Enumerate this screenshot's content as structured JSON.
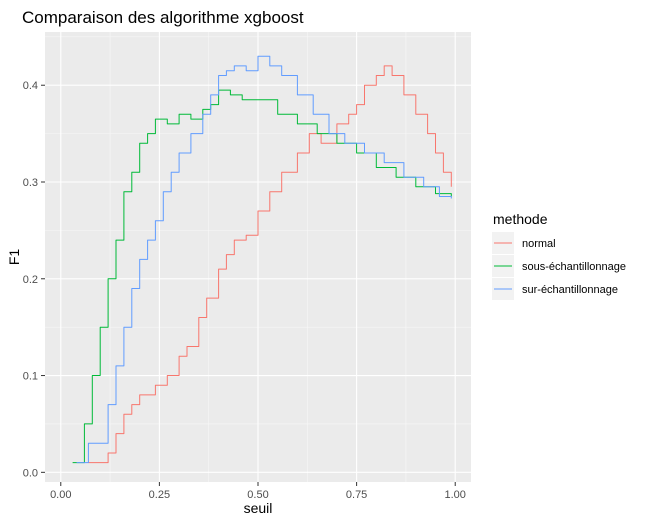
{
  "chart_data": {
    "type": "line",
    "title": "Comparaison des algorithme xgboost",
    "xlabel": "seuil",
    "ylabel": "F1",
    "xlim": [
      -0.04,
      1.04
    ],
    "ylim": [
      -0.01,
      0.455
    ],
    "xticks": [
      0.0,
      0.25,
      0.5,
      0.75,
      1.0
    ],
    "xtick_labels": [
      "0.00",
      "0.25",
      "0.50",
      "0.75",
      "1.00"
    ],
    "yticks": [
      0.0,
      0.1,
      0.2,
      0.3,
      0.4
    ],
    "ytick_labels": [
      "0.0",
      "0.1",
      "0.2",
      "0.3",
      "0.4"
    ],
    "grid": true,
    "legend": {
      "title": "methode",
      "position": "right"
    },
    "series": [
      {
        "name": "normal",
        "color": "#F8766D",
        "points": [
          [
            0.07,
            0.01
          ],
          [
            0.1,
            0.01
          ],
          [
            0.12,
            0.02
          ],
          [
            0.14,
            0.04
          ],
          [
            0.16,
            0.06
          ],
          [
            0.18,
            0.07
          ],
          [
            0.2,
            0.08
          ],
          [
            0.24,
            0.09
          ],
          [
            0.27,
            0.1
          ],
          [
            0.3,
            0.12
          ],
          [
            0.32,
            0.13
          ],
          [
            0.35,
            0.16
          ],
          [
            0.37,
            0.18
          ],
          [
            0.4,
            0.21
          ],
          [
            0.42,
            0.225
          ],
          [
            0.44,
            0.24
          ],
          [
            0.47,
            0.245
          ],
          [
            0.5,
            0.27
          ],
          [
            0.53,
            0.29
          ],
          [
            0.56,
            0.31
          ],
          [
            0.6,
            0.33
          ],
          [
            0.63,
            0.35
          ],
          [
            0.66,
            0.34
          ],
          [
            0.7,
            0.36
          ],
          [
            0.73,
            0.37
          ],
          [
            0.75,
            0.38
          ],
          [
            0.77,
            0.4
          ],
          [
            0.8,
            0.41
          ],
          [
            0.82,
            0.42
          ],
          [
            0.84,
            0.41
          ],
          [
            0.87,
            0.39
          ],
          [
            0.9,
            0.37
          ],
          [
            0.93,
            0.35
          ],
          [
            0.95,
            0.33
          ],
          [
            0.97,
            0.31
          ],
          [
            0.99,
            0.295
          ]
        ]
      },
      {
        "name": "sous-échantillonnage",
        "color": "#00BA38",
        "points": [
          [
            0.03,
            0.01
          ],
          [
            0.05,
            0.01
          ],
          [
            0.06,
            0.05
          ],
          [
            0.08,
            0.1
          ],
          [
            0.1,
            0.15
          ],
          [
            0.12,
            0.2
          ],
          [
            0.14,
            0.24
          ],
          [
            0.16,
            0.29
          ],
          [
            0.18,
            0.31
          ],
          [
            0.2,
            0.34
          ],
          [
            0.22,
            0.35
          ],
          [
            0.24,
            0.365
          ],
          [
            0.27,
            0.36
          ],
          [
            0.3,
            0.37
          ],
          [
            0.33,
            0.365
          ],
          [
            0.36,
            0.375
          ],
          [
            0.38,
            0.38
          ],
          [
            0.4,
            0.395
          ],
          [
            0.43,
            0.39
          ],
          [
            0.46,
            0.385
          ],
          [
            0.5,
            0.385
          ],
          [
            0.55,
            0.37
          ],
          [
            0.6,
            0.36
          ],
          [
            0.65,
            0.35
          ],
          [
            0.7,
            0.34
          ],
          [
            0.75,
            0.33
          ],
          [
            0.8,
            0.315
          ],
          [
            0.85,
            0.305
          ],
          [
            0.9,
            0.295
          ],
          [
            0.95,
            0.288
          ],
          [
            0.99,
            0.285
          ]
        ]
      },
      {
        "name": "sur-échantillonnage",
        "color": "#619CFF",
        "points": [
          [
            0.04,
            0.01
          ],
          [
            0.06,
            0.01
          ],
          [
            0.07,
            0.03
          ],
          [
            0.1,
            0.03
          ],
          [
            0.12,
            0.07
          ],
          [
            0.14,
            0.11
          ],
          [
            0.16,
            0.15
          ],
          [
            0.18,
            0.19
          ],
          [
            0.2,
            0.22
          ],
          [
            0.22,
            0.24
          ],
          [
            0.24,
            0.26
          ],
          [
            0.26,
            0.29
          ],
          [
            0.28,
            0.31
          ],
          [
            0.3,
            0.33
          ],
          [
            0.33,
            0.35
          ],
          [
            0.36,
            0.37
          ],
          [
            0.38,
            0.39
          ],
          [
            0.4,
            0.41
          ],
          [
            0.42,
            0.415
          ],
          [
            0.44,
            0.42
          ],
          [
            0.47,
            0.415
          ],
          [
            0.5,
            0.43
          ],
          [
            0.53,
            0.42
          ],
          [
            0.56,
            0.41
          ],
          [
            0.6,
            0.39
          ],
          [
            0.64,
            0.37
          ],
          [
            0.68,
            0.35
          ],
          [
            0.72,
            0.34
          ],
          [
            0.77,
            0.33
          ],
          [
            0.82,
            0.32
          ],
          [
            0.87,
            0.305
          ],
          [
            0.92,
            0.295
          ],
          [
            0.96,
            0.285
          ],
          [
            0.99,
            0.283
          ]
        ]
      }
    ]
  }
}
